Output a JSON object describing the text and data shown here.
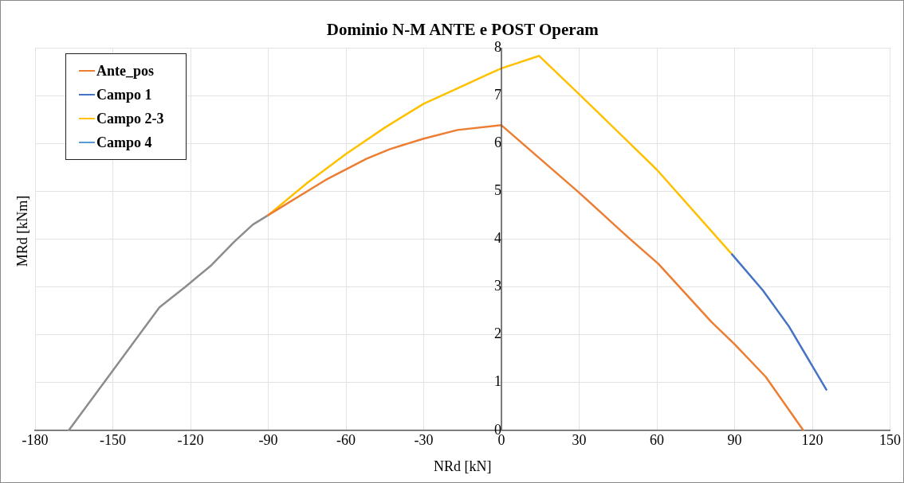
{
  "chart_data": {
    "type": "line",
    "title": "Dominio N-M ANTE e POST Operam",
    "xlabel": "NRd [kN]",
    "ylabel": "MRd [kNm]",
    "series": [
      {
        "name": "Ante_pos",
        "color": "#ed7d31",
        "x": [
          -90,
          -68,
          -52,
          -43,
          -30,
          -17,
          0,
          30,
          48.6,
          60.6,
          81,
          90,
          102,
          116.5
        ],
        "values": [
          4.5,
          5.23,
          5.68,
          5.88,
          6.1,
          6.28,
          6.38,
          4.97,
          4.05,
          3.48,
          2.27,
          1.8,
          1.12,
          0
        ]
      },
      {
        "name": "Campo 1",
        "color": "#4472c4",
        "x": [
          89,
          101,
          111,
          125.4
        ],
        "values": [
          3.68,
          2.92,
          2.17,
          0.85
        ]
      },
      {
        "name": "Campo 2-3",
        "color": "#ffc000",
        "x": [
          -90,
          -75,
          -60,
          -45,
          -30,
          -15,
          -5,
          0,
          14.5,
          30,
          60,
          89
        ],
        "values": [
          4.5,
          5.17,
          5.78,
          6.33,
          6.83,
          7.2,
          7.45,
          7.57,
          7.83,
          7.03,
          5.45,
          3.68
        ]
      },
      {
        "name": "Campo 4",
        "color": "#5b9bd5"
      },
      {
        "color": "#8c8c8c",
        "x": [
          -167,
          -132,
          -122,
          -112,
          -103,
          -96,
          -90
        ],
        "values": [
          0,
          2.57,
          3.0,
          3.45,
          3.95,
          4.3,
          4.5
        ]
      }
    ],
    "xlim": [
      -180,
      150
    ],
    "xticks": [
      -180,
      -150,
      -120,
      -90,
      -60,
      -30,
      0,
      30,
      60,
      90,
      120,
      150
    ],
    "ylim": [
      0,
      8
    ],
    "yticks": [
      0,
      1,
      2,
      3,
      4,
      5,
      6,
      7,
      8
    ],
    "grid": true,
    "legend": "top left",
    "marker": "none",
    "line_style": "solid"
  }
}
